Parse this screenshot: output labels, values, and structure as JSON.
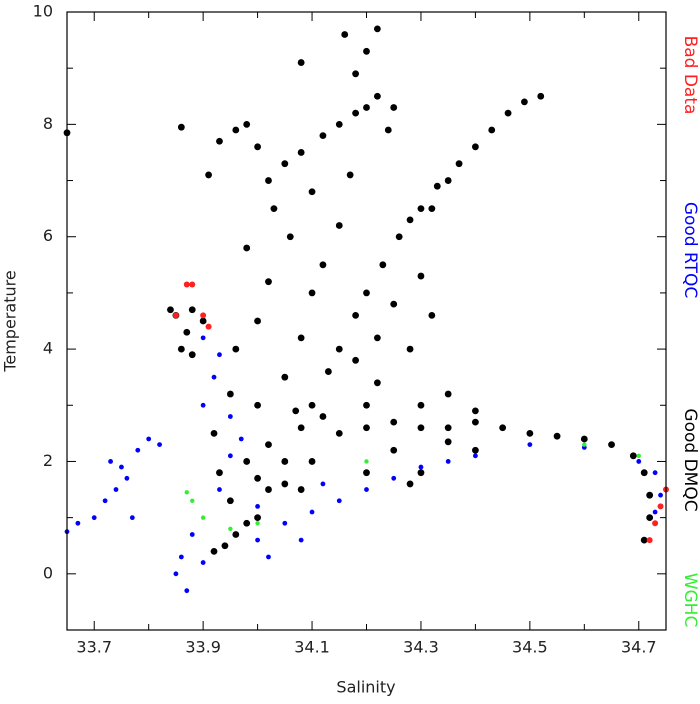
{
  "chart_data": {
    "type": "scatter",
    "x_label": "Salinity",
    "y_label": "Temperature",
    "xlim": [
      33.65,
      34.75
    ],
    "ylim": [
      -1,
      10
    ],
    "xticks": [
      33.7,
      33.9,
      34.1,
      34.3,
      34.5,
      34.7
    ],
    "xminorticks": [
      33.8,
      34.0,
      34.2,
      34.4,
      34.6
    ],
    "yticks": [
      0,
      2,
      4,
      6,
      8,
      10
    ],
    "yminorticks": [
      -1,
      1,
      3,
      5,
      7,
      9
    ],
    "legend": "right",
    "series": [
      {
        "name": "Bad Data",
        "color": "#ff2020",
        "x": [
          33.87,
          33.88,
          33.85,
          33.9,
          33.91,
          34.72,
          34.73,
          34.74,
          34.75
        ],
        "y": [
          5.15,
          5.15,
          4.6,
          4.6,
          4.4,
          0.6,
          0.9,
          1.2,
          1.5
        ]
      },
      {
        "name": "Good RTQC",
        "color": "#0000ff",
        "x": [
          33.65,
          33.67,
          33.7,
          33.72,
          33.74,
          33.73,
          33.76,
          33.78,
          33.8,
          33.82,
          33.77,
          33.75,
          33.86,
          33.87,
          33.85,
          33.9,
          33.88,
          33.93,
          33.95,
          33.9,
          33.92,
          33.9,
          33.93,
          33.95,
          34.0,
          34.05,
          34.1,
          34.15,
          34.2,
          34.25,
          34.3,
          34.35,
          34.4,
          34.5,
          34.6,
          34.7,
          34.73,
          34.74,
          34.73,
          34.02,
          34.08,
          34.0,
          33.97,
          34.12
        ],
        "y": [
          0.75,
          0.9,
          1.0,
          1.3,
          1.5,
          2.0,
          1.7,
          2.2,
          2.4,
          2.3,
          1.0,
          1.9,
          0.3,
          -0.3,
          0.0,
          0.2,
          0.7,
          1.5,
          2.1,
          3.0,
          3.5,
          4.2,
          3.9,
          2.8,
          0.6,
          0.9,
          1.1,
          1.3,
          1.5,
          1.7,
          1.9,
          2.0,
          2.1,
          2.3,
          2.25,
          2.0,
          1.8,
          1.4,
          1.1,
          0.3,
          0.6,
          1.2,
          2.4,
          1.6
        ]
      },
      {
        "name": "Good DMQC",
        "color": "#000000",
        "x": [
          34.0,
          34.02,
          34.05,
          34.08,
          34.1,
          34.13,
          34.15,
          34.18,
          34.2,
          34.23,
          34.26,
          34.3,
          34.33,
          34.37,
          34.4,
          34.43,
          34.46,
          34.49,
          34.52,
          34.35,
          34.28,
          34.32,
          34.15,
          34.2,
          34.25,
          34.3,
          34.35,
          34.4,
          34.45,
          34.5,
          34.55,
          34.6,
          34.65,
          34.69,
          34.71,
          34.72,
          34.72,
          34.71,
          34.3,
          34.35,
          34.4,
          34.25,
          34.35,
          34.05,
          34.08,
          34.1,
          34.12,
          34.06,
          34.15,
          34.2,
          34.18,
          34.22,
          34.25,
          34.0,
          34.02,
          33.98,
          34.03,
          34.1,
          34.17,
          34.22,
          34.12,
          34.07,
          34.28,
          34.3,
          34.32,
          34.0,
          33.96,
          33.95,
          33.93,
          33.96,
          34.0,
          34.05,
          34.08,
          34.12,
          34.15,
          34.18,
          34.2,
          34.22,
          34.25,
          34.16,
          34.2,
          34.22,
          34.18,
          34.08,
          33.98,
          33.91,
          34.02,
          34.24,
          33.85,
          33.87,
          33.86,
          33.88,
          33.84,
          33.9,
          33.88,
          33.86,
          33.65,
          33.92,
          33.94,
          33.96,
          33.98,
          33.95,
          33.93,
          33.98,
          34.02,
          33.92,
          34.0,
          34.05,
          34.08,
          34.1,
          34.2,
          34.28,
          34.3,
          34.4
        ],
        "y": [
          1.0,
          1.5,
          2.0,
          2.6,
          3.0,
          3.6,
          4.0,
          4.6,
          5.0,
          5.5,
          6.0,
          6.5,
          6.9,
          7.3,
          7.6,
          7.9,
          8.2,
          8.4,
          8.5,
          7.0,
          6.3,
          6.5,
          2.5,
          2.6,
          2.7,
          2.6,
          2.6,
          2.7,
          2.6,
          2.5,
          2.45,
          2.4,
          2.3,
          2.1,
          1.8,
          1.4,
          1.0,
          0.6,
          3.0,
          3.2,
          2.9,
          2.2,
          2.35,
          3.5,
          4.2,
          5.0,
          5.5,
          6.0,
          6.2,
          3.0,
          3.8,
          4.2,
          4.8,
          4.5,
          5.2,
          5.8,
          6.5,
          6.8,
          7.1,
          3.4,
          2.8,
          2.9,
          4.0,
          5.3,
          4.6,
          3.0,
          4.0,
          3.2,
          7.7,
          7.9,
          7.6,
          7.3,
          7.5,
          7.8,
          8.0,
          8.2,
          8.3,
          8.5,
          8.3,
          9.6,
          9.3,
          9.7,
          8.9,
          9.1,
          8.0,
          7.1,
          7.0,
          7.9,
          4.6,
          4.3,
          4.0,
          4.7,
          4.7,
          4.5,
          3.9,
          7.95,
          7.85,
          0.4,
          0.5,
          0.7,
          0.9,
          1.3,
          1.8,
          2.0,
          2.3,
          2.5,
          1.7,
          1.6,
          1.5,
          2.0,
          1.8,
          1.6,
          1.8,
          2.2
        ]
      },
      {
        "name": "WGHC",
        "color": "#33ee33",
        "x": [
          33.87,
          33.88,
          33.9,
          33.95,
          34.0,
          34.2,
          34.6,
          34.7
        ],
        "y": [
          1.45,
          1.3,
          1.0,
          0.8,
          0.9,
          2.0,
          2.3,
          2.1
        ]
      }
    ]
  }
}
